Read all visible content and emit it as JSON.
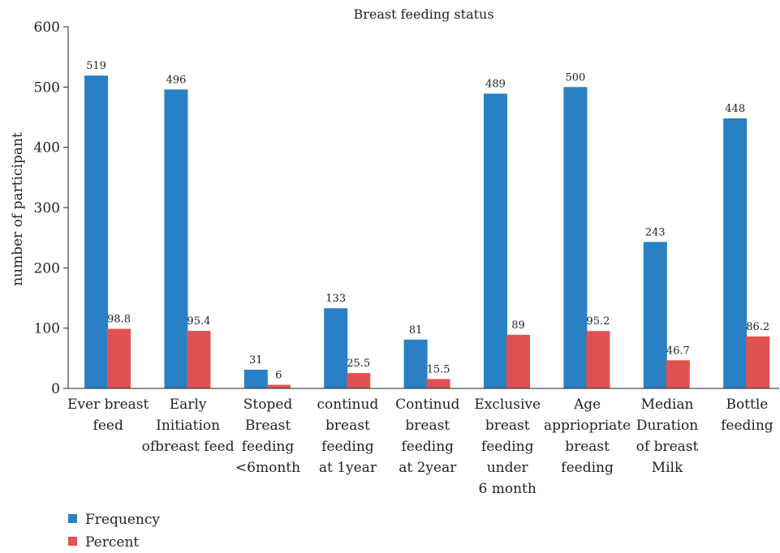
{
  "chart_data": {
    "type": "bar",
    "title": "Breast feeding status",
    "ylabel": "number of participant",
    "xlabel": "",
    "ylim": [
      0,
      600
    ],
    "yticks": [
      0,
      100,
      200,
      300,
      400,
      500,
      600
    ],
    "grid": false,
    "legend_position": "bottom-left",
    "categories": [
      [
        "Ever breast",
        "feed"
      ],
      [
        "Early",
        "Initiation",
        "ofbreast feed"
      ],
      [
        "Stoped",
        "Breast",
        "feeding",
        "<6month"
      ],
      [
        "continud",
        "breast",
        "feeding",
        "at 1year"
      ],
      [
        "Continud",
        "breast",
        "feeding",
        "at 2year"
      ],
      [
        "Exclusive",
        "breast",
        "feeding",
        "under",
        "6 month"
      ],
      [
        "Age",
        "appriopriate",
        "breast",
        "feeding"
      ],
      [
        "Median",
        "Duration",
        "of breast",
        "Milk"
      ],
      [
        "Bottle",
        "feeding"
      ]
    ],
    "series": [
      {
        "name": "Frequency",
        "color": "#2a80c5",
        "values": [
          519,
          496,
          31,
          133,
          81,
          489,
          500,
          243,
          448
        ],
        "labels": [
          "519",
          "496",
          "31",
          "133",
          "81",
          "489",
          "500",
          "243",
          "448"
        ]
      },
      {
        "name": "Percent",
        "color": "#e05252",
        "values": [
          98.8,
          95.4,
          6,
          25.5,
          15.5,
          89,
          95.2,
          46.7,
          86.2
        ],
        "labels": [
          "98.8",
          "95.4",
          "6",
          "25.5",
          "15.5",
          "89",
          "95.2",
          "46.7",
          "86.2"
        ]
      }
    ]
  }
}
